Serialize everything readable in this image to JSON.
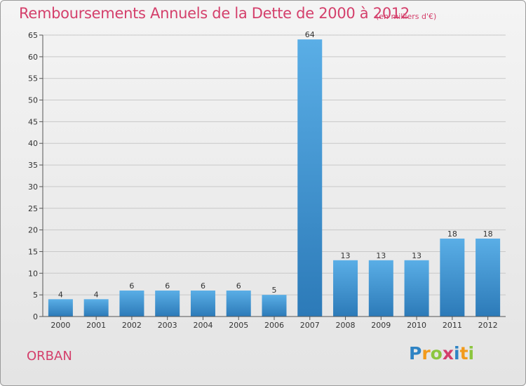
{
  "title": "Remboursements Annuels de la Dette de 2000 à 2012",
  "unit_note": "(en milliers d'€)",
  "town": "ORBAN",
  "logo": {
    "text": "Proxiti",
    "letter_colors": [
      "#2e83c4",
      "#f29a1b",
      "#8cc63f",
      "#d43f6b",
      "#2e83c4",
      "#f29a1b",
      "#8cc63f"
    ]
  },
  "colors": {
    "title": "#d43f6b",
    "bar_light": "#5aaee6",
    "bar_dark": "#2c7ab8",
    "grid": "#c8c8c8",
    "axis_text": "#333333"
  },
  "chart_data": {
    "type": "bar",
    "categories": [
      "2000",
      "2001",
      "2002",
      "2003",
      "2004",
      "2005",
      "2006",
      "2007",
      "2008",
      "2009",
      "2010",
      "2011",
      "2012"
    ],
    "values": [
      4,
      4,
      6,
      6,
      6,
      6,
      5,
      64,
      13,
      13,
      13,
      18,
      18
    ],
    "data_labels": [
      "4",
      "4",
      "6",
      "6",
      "6",
      "6",
      "5",
      "64",
      "13",
      "13",
      "13",
      "18",
      "18"
    ],
    "y_ticks": [
      0,
      5,
      10,
      15,
      20,
      25,
      30,
      35,
      40,
      45,
      50,
      55,
      60,
      65
    ],
    "ylim": [
      0,
      65
    ],
    "grid": true
  }
}
